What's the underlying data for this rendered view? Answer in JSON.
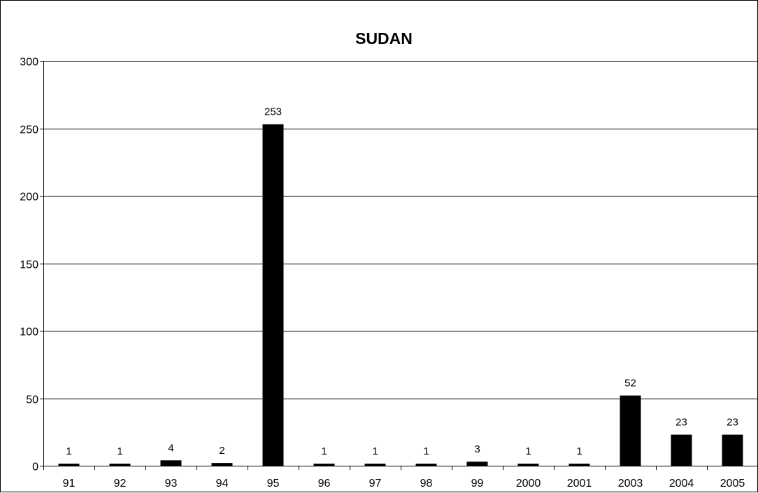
{
  "chart_data": {
    "type": "bar",
    "title": "SUDAN",
    "xlabel": "",
    "ylabel": "",
    "categories": [
      "91",
      "92",
      "93",
      "94",
      "95",
      "96",
      "97",
      "98",
      "99",
      "2000",
      "2001",
      "2003",
      "2004",
      "2005"
    ],
    "values": [
      1,
      1,
      4,
      2,
      253,
      1,
      1,
      1,
      3,
      1,
      1,
      52,
      23,
      23
    ],
    "data_labels": [
      "1",
      "1",
      "4",
      "2",
      "253",
      "1",
      "1",
      "1",
      "3",
      "1",
      "1",
      "52",
      "23",
      "23"
    ],
    "ylim": [
      0,
      300
    ],
    "yticks": [
      0,
      50,
      100,
      150,
      200,
      250,
      300
    ],
    "ytick_labels": [
      "0",
      "50",
      "100",
      "150",
      "200",
      "250",
      "300"
    ],
    "grid": true,
    "legend": "none",
    "bar_color": "#000000"
  }
}
